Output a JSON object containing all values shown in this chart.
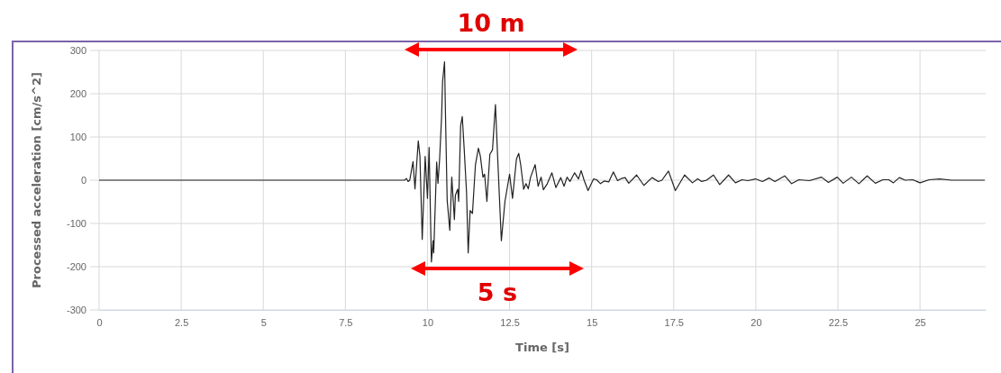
{
  "chart_data": {
    "type": "line",
    "xlabel": "Time [s]",
    "ylabel": "Processed acceleration [cm/s^2]",
    "xlim": [
      0,
      27
    ],
    "ylim": [
      -300,
      300
    ],
    "xticks": [
      0,
      2.5,
      5,
      7.5,
      10,
      12.5,
      15,
      17.5,
      20,
      22.5,
      25
    ],
    "yticks": [
      -300,
      -200,
      -100,
      0,
      100,
      200,
      300
    ],
    "grid": true,
    "line_style": "solid",
    "annotations": [
      "10 m",
      "5 s"
    ],
    "series": [
      {
        "color": "#222222",
        "x": [
          0,
          9.3,
          9.36,
          9.41,
          9.46,
          9.56,
          9.62,
          9.72,
          9.77,
          9.84,
          9.93,
          10.0,
          10.05,
          10.12,
          10.17,
          10.19,
          10.28,
          10.32,
          10.37,
          10.43,
          10.46,
          10.52,
          10.55,
          10.6,
          10.68,
          10.74,
          10.82,
          10.85,
          10.92,
          10.95,
          11.01,
          11.06,
          11.12,
          11.19,
          11.24,
          11.3,
          11.37,
          11.46,
          11.55,
          11.61,
          11.69,
          11.74,
          11.81,
          11.9,
          11.98,
          12.07,
          12.14,
          12.25,
          12.36,
          12.5,
          12.59,
          12.71,
          12.78,
          12.84,
          12.93,
          13.0,
          13.07,
          13.14,
          13.28,
          13.37,
          13.46,
          13.53,
          13.65,
          13.79,
          13.91,
          14.06,
          14.16,
          14.25,
          14.34,
          14.48,
          14.6,
          14.68,
          14.77,
          14.89,
          15.06,
          15.15,
          15.27,
          15.38,
          15.52,
          15.66,
          15.79,
          15.91,
          16.02,
          16.13,
          16.37,
          16.59,
          16.84,
          17.03,
          17.14,
          17.34,
          17.55,
          17.83,
          18.07,
          18.23,
          18.35,
          18.5,
          18.71,
          18.9,
          19.17,
          19.38,
          19.58,
          19.76,
          19.99,
          20.2,
          20.4,
          20.58,
          20.88,
          21.09,
          21.31,
          21.63,
          22.0,
          22.21,
          22.48,
          22.66,
          22.91,
          23.14,
          23.39,
          23.64,
          23.87,
          24.05,
          24.19,
          24.37,
          24.55,
          24.78,
          25.0,
          25.28,
          25.6,
          25.96,
          26.42,
          26.97
        ],
        "values": [
          0,
          0,
          4,
          -3,
          0,
          43,
          -20,
          91,
          56,
          -137,
          55,
          -42,
          76,
          -189,
          -140,
          -168,
          42,
          -7,
          49,
          147,
          228,
          274,
          147,
          -46,
          -116,
          7,
          -91,
          -35,
          -21,
          -49,
          126,
          147,
          70,
          -28,
          -168,
          -70,
          -77,
          35,
          74,
          56,
          7,
          14,
          -49,
          60,
          70,
          175,
          49,
          -140,
          -49,
          14,
          -42,
          49,
          62,
          35,
          -21,
          -8,
          -20,
          7,
          36,
          -14,
          7,
          -22,
          -8,
          17,
          -17,
          6,
          -14,
          7,
          -3,
          17,
          3,
          22,
          0,
          -24,
          3,
          1,
          -8,
          -2,
          -4,
          19,
          -1,
          4,
          6,
          -7,
          12,
          -12,
          6,
          -3,
          0,
          21,
          -24,
          12,
          -6,
          3,
          -3,
          0,
          12,
          -10,
          12,
          -6,
          1,
          -1,
          3,
          -3,
          5,
          -3,
          10,
          -8,
          1,
          -1,
          7,
          -5,
          7,
          -7,
          7,
          -8,
          10,
          -7,
          1,
          1,
          -6,
          6,
          0,
          1,
          -6,
          1,
          3,
          0,
          0,
          0
        ]
      }
    ]
  }
}
